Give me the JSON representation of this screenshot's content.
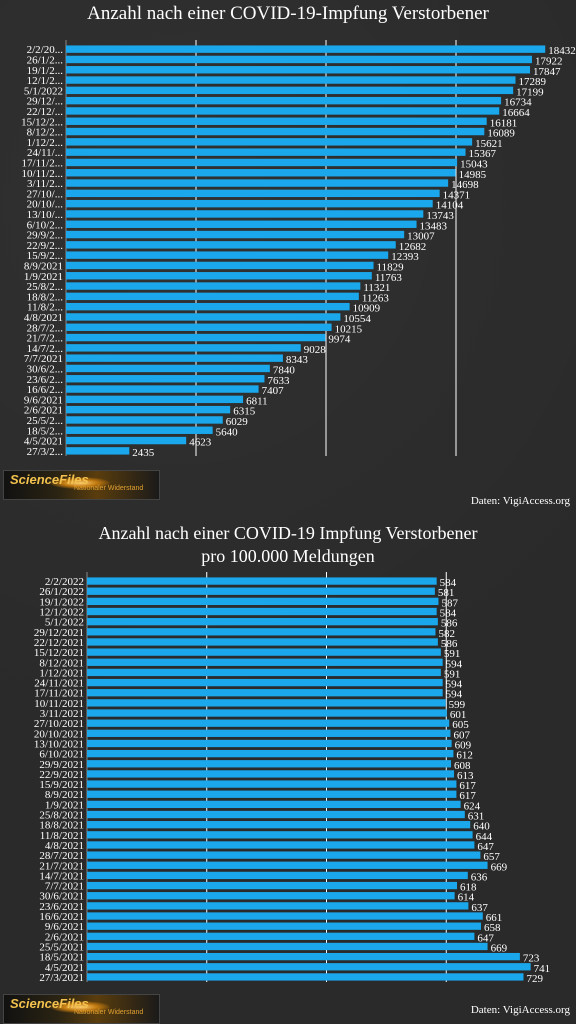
{
  "colors": {
    "bar": "#1aa7ec",
    "grid": "#ffffff",
    "background": "#2a2a2a",
    "text": "#ffffff"
  },
  "logo": {
    "main": "ScienceFiles",
    "sub": "Nationaler Widerstand"
  },
  "chart_data": [
    {
      "type": "bar",
      "orientation": "horizontal",
      "title": "Anzahl nach einer COVID-19-Impfung Verstorbener",
      "source": "Daten: VigiAccess.org",
      "xlim": [
        0,
        19000
      ],
      "grid": true,
      "categories": [
        "2/2/20...",
        "26/1/2...",
        "19/1/2...",
        "12/1/2...",
        "5/1/2022",
        "29/12/...",
        "22/12/...",
        "15/12/2...",
        "8/12/2...",
        "1/12/2...",
        "24/11/...",
        "17/11/2...",
        "10/11/2...",
        "3/11/2...",
        "27/10/...",
        "20/10/...",
        "13/10/...",
        "6/10/2...",
        "29/9/2...",
        "22/9/2...",
        "15/9/2...",
        "8/9/2021",
        "1/9/2021",
        "25/8/2...",
        "18/8/2...",
        "11/8/2...",
        "4/8/2021",
        "28/7/2...",
        "21/7/2...",
        "14/7/2...",
        "7/7/2021",
        "30/6/2...",
        "23/6/2...",
        "16/6/2...",
        "9/6/2021",
        "2/6/2021",
        "25/5/2...",
        "18/5/2...",
        "4/5/2021",
        "27/3/2..."
      ],
      "values": [
        18432,
        17922,
        17847,
        17289,
        17199,
        16734,
        16664,
        16181,
        16089,
        15621,
        15367,
        15043,
        14985,
        14698,
        14371,
        14104,
        13743,
        13483,
        13007,
        12682,
        12393,
        11829,
        11763,
        11321,
        11263,
        10909,
        10554,
        10215,
        9974,
        9028,
        8343,
        7840,
        7633,
        7407,
        6811,
        6315,
        6029,
        5640,
        4623,
        2435
      ]
    },
    {
      "type": "bar",
      "orientation": "horizontal",
      "title": "Anzahl nach einer COVID-19 Impfung Verstorbener",
      "subtitle": "pro 100.000 Meldungen",
      "source": "Daten: VigiAccess.org",
      "xlim": [
        0,
        800
      ],
      "grid": true,
      "categories": [
        "2/2/2022",
        "26/1/2022",
        "19/1/2022",
        "12/1/2022",
        "5/1/2022",
        "29/12/2021",
        "22/12/2021",
        "15/12/2021",
        "8/12/2021",
        "1/12/2021",
        "24/11/2021",
        "17/11/2021",
        "10/11/2021",
        "3/11/2021",
        "27/10/2021",
        "20/10/2021",
        "13/10/2021",
        "6/10/2021",
        "29/9/2021",
        "22/9/2021",
        "15/9/2021",
        "8/9/2021",
        "1/9/2021",
        "25/8/2021",
        "18/8/2021",
        "11/8/2021",
        "4/8/2021",
        "28/7/2021",
        "21/7/2021",
        "14/7/2021",
        "7/7/2021",
        "30/6/2021",
        "23/6/2021",
        "16/6/2021",
        "9/6/2021",
        "2/6/2021",
        "25/5/2021",
        "18/5/2021",
        "4/5/2021",
        "27/3/2021"
      ],
      "values": [
        584,
        581,
        587,
        584,
        586,
        582,
        586,
        591,
        594,
        591,
        594,
        594,
        599,
        601,
        605,
        607,
        609,
        612,
        608,
        613,
        617,
        617,
        624,
        631,
        640,
        644,
        647,
        657,
        669,
        636,
        618,
        614,
        637,
        661,
        658,
        647,
        669,
        723,
        741,
        729
      ]
    }
  ]
}
